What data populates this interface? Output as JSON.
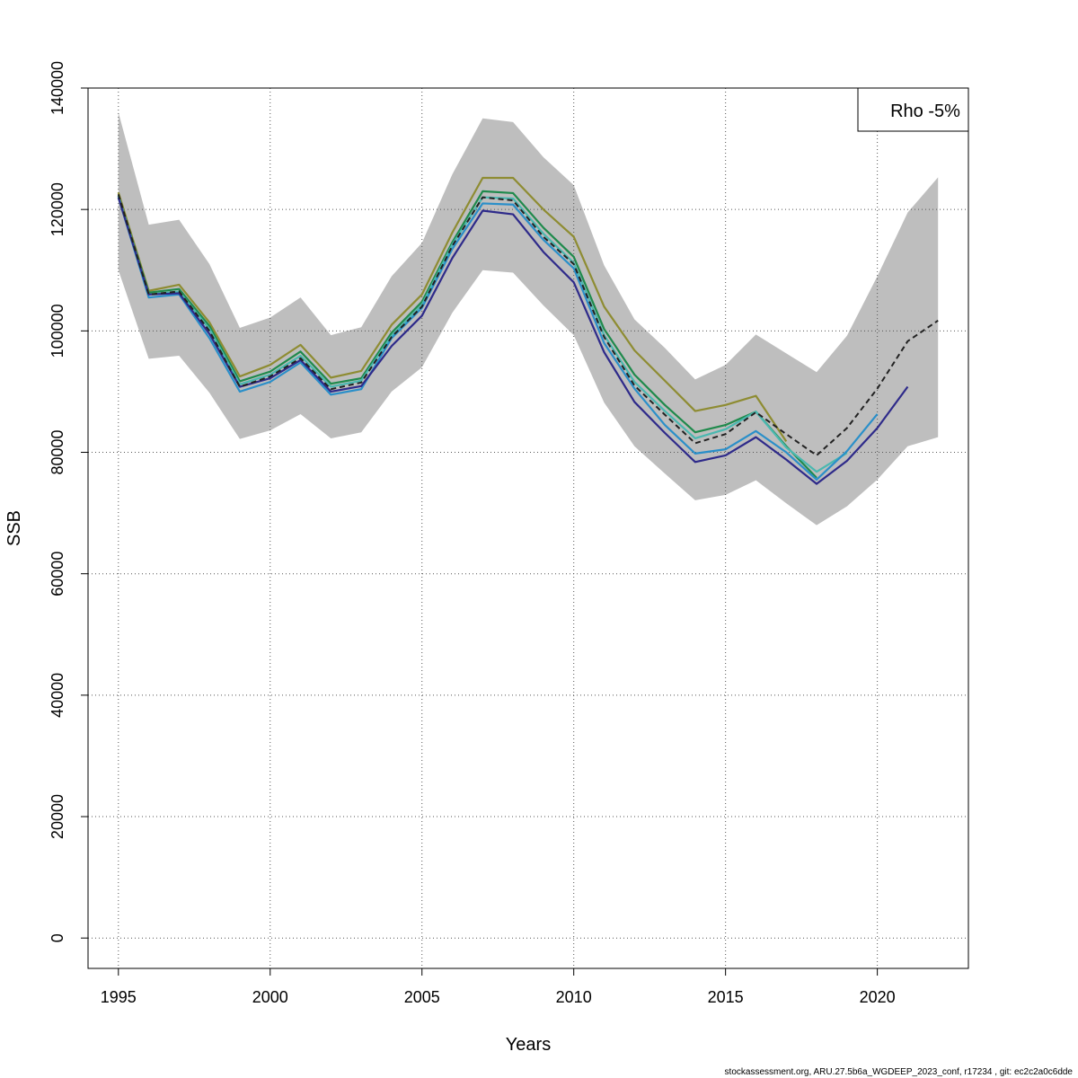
{
  "chart_data": {
    "type": "line",
    "xlabel": "Years",
    "ylabel": "SSB",
    "xlim": [
      1994,
      2023
    ],
    "ylim": [
      -5000,
      140000
    ],
    "x_ticks": [
      1995,
      2000,
      2005,
      2010,
      2015,
      2020
    ],
    "y_ticks": [
      0,
      20000,
      40000,
      60000,
      80000,
      100000,
      120000,
      140000
    ],
    "grid": true,
    "legend": {
      "text": "Rho -5%",
      "position": "top-right"
    },
    "confidence_band": {
      "color": "#bebebe",
      "x": [
        1995,
        1996,
        1997,
        1998,
        1999,
        2000,
        2001,
        2002,
        2003,
        2004,
        2005,
        2006,
        2007,
        2008,
        2009,
        2010,
        2011,
        2012,
        2013,
        2014,
        2015,
        2016,
        2017,
        2018,
        2019,
        2020,
        2021,
        2022
      ],
      "upper": [
        136000,
        117500,
        118300,
        111000,
        100500,
        102200,
        105500,
        99300,
        100600,
        109000,
        114500,
        125800,
        135000,
        134400,
        128600,
        124000,
        110800,
        101900,
        97200,
        92000,
        94400,
        99400,
        96300,
        93200,
        99200,
        109000,
        119500,
        125300
      ],
      "lower": [
        110000,
        95400,
        95900,
        89800,
        82200,
        83600,
        86300,
        82300,
        83300,
        90000,
        94000,
        103000,
        110000,
        109600,
        104200,
        99300,
        88200,
        81000,
        76500,
        72100,
        73000,
        75400,
        71600,
        68000,
        71100,
        75500,
        81000,
        82500
      ]
    },
    "series": [
      {
        "color": "#222222",
        "dashed": true,
        "x": [
          1995,
          1996,
          1997,
          1998,
          1999,
          2000,
          2001,
          2002,
          2003,
          2004,
          2005,
          2006,
          2007,
          2008,
          2009,
          2010,
          2011,
          2012,
          2013,
          2014,
          2015,
          2016,
          2017,
          2018,
          2019,
          2020,
          2021,
          2022
        ],
        "y": [
          122500,
          106000,
          106500,
          100000,
          90800,
          92500,
          95500,
          90400,
          91500,
          99000,
          104000,
          114000,
          122000,
          121500,
          115500,
          111000,
          99000,
          91000,
          86200,
          81500,
          83000,
          86600,
          83000,
          79500,
          84000,
          90500,
          98300,
          101700
        ]
      },
      {
        "color": "#2e2a8a",
        "dashed": false,
        "x": [
          1995,
          1996,
          1997,
          1998,
          1999,
          2000,
          2001,
          2002,
          2003,
          2004,
          2005,
          2006,
          2007,
          2008,
          2009,
          2010,
          2011,
          2012,
          2013,
          2014,
          2015,
          2016,
          2017,
          2018,
          2019,
          2020,
          2021
        ],
        "y": [
          122000,
          106000,
          106200,
          99500,
          90800,
          92200,
          95200,
          90000,
          90900,
          97500,
          102500,
          112000,
          119800,
          119200,
          113000,
          108000,
          96500,
          88300,
          83200,
          78400,
          79500,
          82500,
          78800,
          74800,
          78600,
          84000,
          90800
        ]
      },
      {
        "color": "#2a8fc9",
        "dashed": false,
        "x": [
          1995,
          1996,
          1997,
          1998,
          1999,
          2000,
          2001,
          2002,
          2003,
          2004,
          2005,
          2006,
          2007,
          2008,
          2009,
          2010,
          2011,
          2012,
          2013,
          2014,
          2015,
          2016,
          2017,
          2018,
          2019,
          2020
        ],
        "y": [
          122000,
          105500,
          106000,
          98800,
          90000,
          91600,
          94800,
          89500,
          90400,
          98800,
          103800,
          113500,
          121000,
          120800,
          115000,
          110300,
          98000,
          90500,
          84500,
          79800,
          80500,
          83500,
          80000,
          75500,
          80200,
          86300
        ]
      },
      {
        "color": "#4ab8b0",
        "dashed": false,
        "x": [
          1995,
          1996,
          1997,
          1998,
          1999,
          2000,
          2001,
          2002,
          2003,
          2004,
          2005,
          2006,
          2007,
          2008,
          2009,
          2010,
          2011,
          2012,
          2013,
          2014,
          2015,
          2016,
          2017,
          2018,
          2019
        ],
        "y": [
          122200,
          106000,
          106500,
          100300,
          91200,
          92800,
          95900,
          90800,
          91800,
          99200,
          104300,
          114200,
          122000,
          121800,
          116000,
          111200,
          99300,
          91600,
          86800,
          82300,
          83800,
          86700,
          80800,
          76800,
          79900
        ]
      },
      {
        "color": "#1f8a4c",
        "dashed": false,
        "x": [
          1995,
          1996,
          1997,
          1998,
          1999,
          2000,
          2001,
          2002,
          2003,
          2004,
          2005,
          2006,
          2007,
          2008,
          2009,
          2010,
          2011,
          2012,
          2013,
          2014,
          2015,
          2016,
          2017,
          2018
        ],
        "y": [
          122300,
          106300,
          106900,
          100800,
          91700,
          93300,
          96600,
          91300,
          92200,
          99700,
          104800,
          114600,
          123000,
          122700,
          117000,
          112200,
          100300,
          92800,
          87800,
          83300,
          84500,
          86700,
          81000,
          75800
        ]
      },
      {
        "color": "#8e8c32",
        "dashed": false,
        "x": [
          1995,
          1996,
          1997,
          1998,
          1999,
          2000,
          2001,
          2002,
          2003,
          2004,
          2005,
          2006,
          2007,
          2008,
          2009,
          2010,
          2011,
          2012,
          2013,
          2014,
          2015,
          2016,
          2017
        ],
        "y": [
          122800,
          106600,
          107600,
          101400,
          92500,
          94400,
          97700,
          92300,
          93400,
          101000,
          106000,
          116200,
          125200,
          125200,
          120000,
          115500,
          104000,
          96800,
          91800,
          86800,
          87800,
          89300,
          81800
        ]
      }
    ]
  },
  "footer": "stockassessment.org, ARU.27.5b6a_WGDEEP_2023_conf, r17234 , git: ec2c2a0c6dde"
}
